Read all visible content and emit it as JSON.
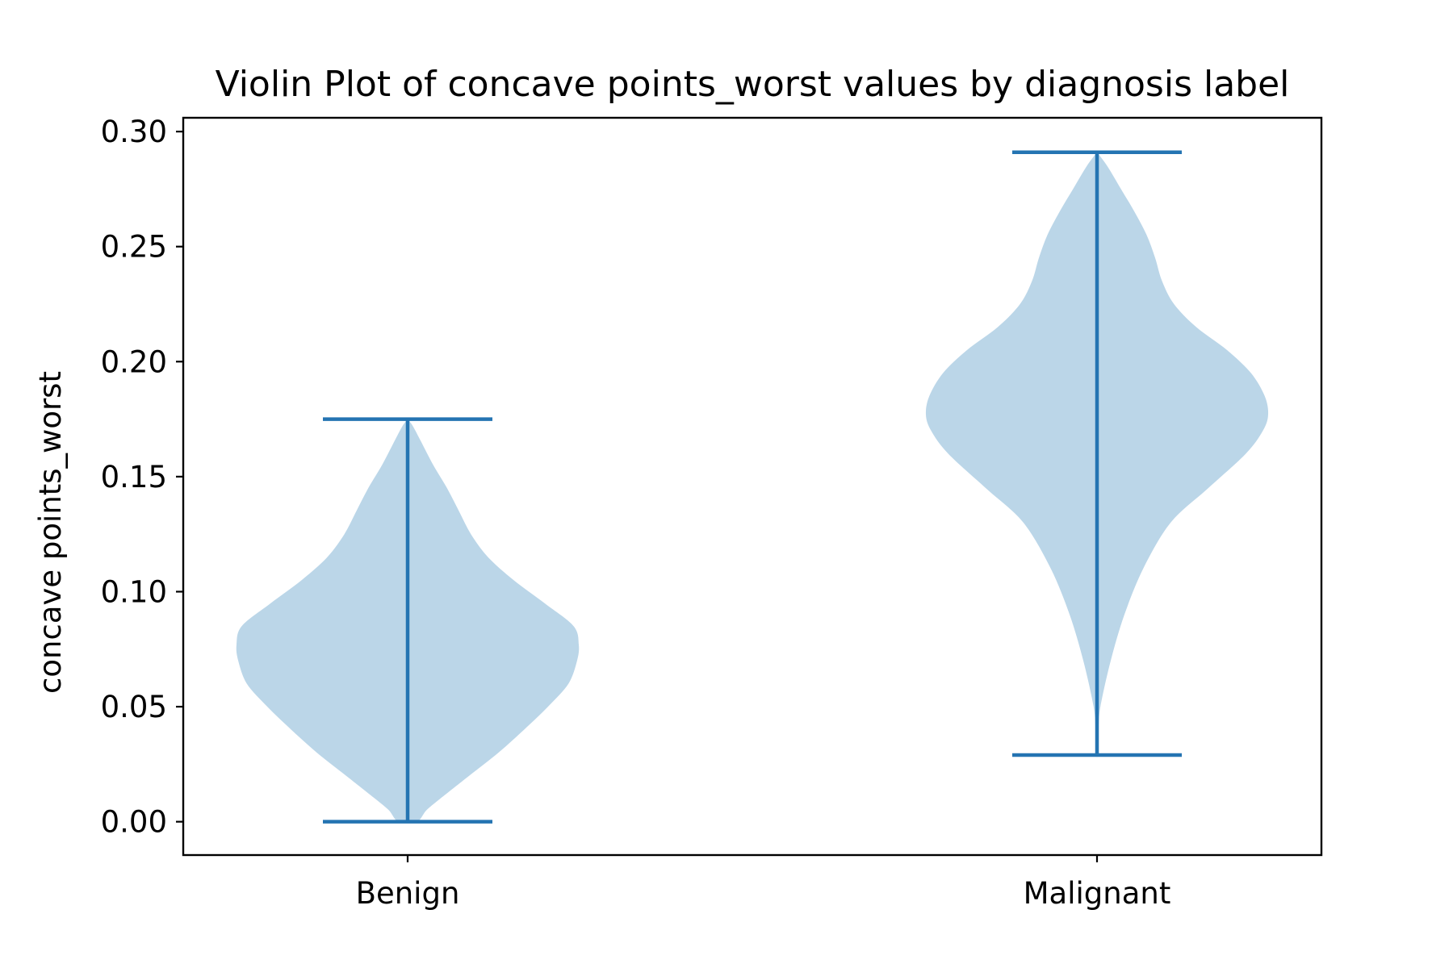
{
  "chart_data": {
    "type": "violin",
    "title": "Violin Plot of concave points_worst values by diagnosis label",
    "xlabel": "",
    "ylabel": "concave points_worst",
    "ylim": [
      -0.0145,
      0.306
    ],
    "yticks": [
      "0.00",
      "0.05",
      "0.10",
      "0.15",
      "0.20",
      "0.25",
      "0.30"
    ],
    "ytick_values": [
      0.0,
      0.05,
      0.1,
      0.15,
      0.2,
      0.25,
      0.3
    ],
    "categories": [
      "Benign",
      "Malignant"
    ],
    "grid": false,
    "colors": {
      "body": "#bbd6e8",
      "lines": "#2474b2",
      "axes": "#000000"
    },
    "violins": [
      {
        "category": "Benign",
        "min": 0.0,
        "max": 0.175,
        "density": [
          [
            0.0,
            0.054
          ],
          [
            0.005,
            0.11
          ],
          [
            0.01,
            0.19
          ],
          [
            0.02,
            0.36
          ],
          [
            0.03,
            0.53
          ],
          [
            0.04,
            0.68
          ],
          [
            0.05,
            0.82
          ],
          [
            0.06,
            0.94
          ],
          [
            0.07,
            0.99
          ],
          [
            0.077,
            1.0
          ],
          [
            0.085,
            0.97
          ],
          [
            0.095,
            0.8
          ],
          [
            0.105,
            0.62
          ],
          [
            0.115,
            0.47
          ],
          [
            0.125,
            0.37
          ],
          [
            0.135,
            0.3
          ],
          [
            0.145,
            0.23
          ],
          [
            0.155,
            0.15
          ],
          [
            0.165,
            0.08
          ],
          [
            0.172,
            0.03
          ],
          [
            0.175,
            0.0
          ]
        ]
      },
      {
        "category": "Malignant",
        "min": 0.029,
        "max": 0.291,
        "density": [
          [
            0.029,
            0.0
          ],
          [
            0.04,
            0.008
          ],
          [
            0.05,
            0.02
          ],
          [
            0.07,
            0.08
          ],
          [
            0.09,
            0.16
          ],
          [
            0.11,
            0.27
          ],
          [
            0.13,
            0.43
          ],
          [
            0.145,
            0.65
          ],
          [
            0.16,
            0.87
          ],
          [
            0.17,
            0.97
          ],
          [
            0.177,
            1.0
          ],
          [
            0.185,
            0.98
          ],
          [
            0.195,
            0.9
          ],
          [
            0.205,
            0.76
          ],
          [
            0.215,
            0.58
          ],
          [
            0.225,
            0.45
          ],
          [
            0.235,
            0.38
          ],
          [
            0.245,
            0.34
          ],
          [
            0.255,
            0.29
          ],
          [
            0.265,
            0.22
          ],
          [
            0.275,
            0.14
          ],
          [
            0.285,
            0.06
          ],
          [
            0.291,
            0.0
          ]
        ]
      }
    ]
  }
}
